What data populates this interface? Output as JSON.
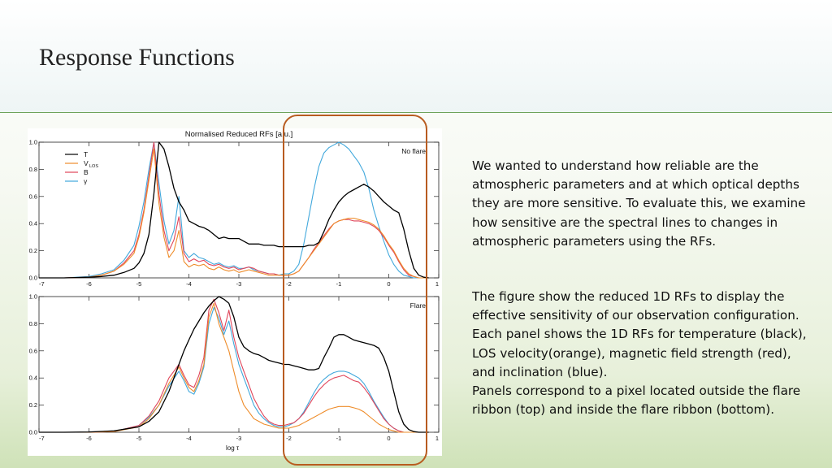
{
  "slide": {
    "title": "Response Functions",
    "paragraph1": "We wanted to understand how reliable are the atmospheric parameters and at which optical depths they are more sensitive. To evaluate this, we examine how sensitive are the spectral lines to changes in atmospheric parameters using the RFs.",
    "paragraph2_lines": [
      "The figure show the reduced 1D RFs to display the effective sensitivity of our observation configuration. Each panel shows the 1D RFs for temperature (black), LOS velocity(orange), magnetic field strength (red), and inclination (blue).",
      "Panels correspond to a pixel located outside the flare ribbon (top) and inside the flare ribbon (bottom)."
    ]
  },
  "colors": {
    "T": "#000000",
    "VLOS": "#ee8c2a",
    "B": "#e0455a",
    "gamma": "#41a8dc",
    "highlight": "#b85c20",
    "rule": "#6ea35a"
  },
  "chart_data": {
    "type": "line",
    "title": "Normalised Reduced RFs [a.u.]",
    "xlabel": "log τ",
    "xlim": [
      -7,
      1
    ],
    "ylim": [
      0,
      1
    ],
    "xticks": [
      "-7",
      "-6",
      "-5",
      "-4",
      "-3",
      "-2",
      "-1",
      "0",
      "1"
    ],
    "yticks": [
      "0.0",
      "0.2",
      "0.4",
      "0.6",
      "0.8",
      "1.0"
    ],
    "legend": {
      "placement": "top-left",
      "entries": [
        {
          "key": "T",
          "label": "T",
          "sub": ""
        },
        {
          "key": "VLOS",
          "label": "V",
          "sub": "LOS"
        },
        {
          "key": "B",
          "label": "B",
          "sub": ""
        },
        {
          "key": "gamma",
          "label": "γ",
          "sub": ""
        }
      ]
    },
    "panels": [
      {
        "label": "No flare",
        "x": [
          -7,
          -6.5,
          -6,
          -5.75,
          -5.5,
          -5.3,
          -5.1,
          -5.0,
          -4.9,
          -4.8,
          -4.7,
          -4.6,
          -4.5,
          -4.4,
          -4.3,
          -4.2,
          -4.1,
          -4.0,
          -3.9,
          -3.8,
          -3.7,
          -3.6,
          -3.5,
          -3.4,
          -3.3,
          -3.2,
          -3.1,
          -3.0,
          -2.9,
          -2.8,
          -2.7,
          -2.6,
          -2.5,
          -2.4,
          -2.3,
          -2.2,
          -2.1,
          -2.0,
          -1.9,
          -1.8,
          -1.7,
          -1.6,
          -1.5,
          -1.4,
          -1.3,
          -1.2,
          -1.1,
          -1.0,
          -0.9,
          -0.8,
          -0.7,
          -0.6,
          -0.5,
          -0.4,
          -0.3,
          -0.2,
          -0.1,
          0.0,
          0.1,
          0.2,
          0.3,
          0.4,
          0.5,
          0.6,
          0.7,
          0.8
        ],
        "series": [
          {
            "name": "T",
            "values": [
              0,
              0,
              0.005,
              0.01,
              0.02,
              0.04,
              0.07,
              0.11,
              0.18,
              0.32,
              0.62,
              1.0,
              0.95,
              0.82,
              0.66,
              0.56,
              0.5,
              0.42,
              0.4,
              0.38,
              0.37,
              0.35,
              0.32,
              0.29,
              0.3,
              0.29,
              0.29,
              0.29,
              0.27,
              0.25,
              0.25,
              0.25,
              0.24,
              0.24,
              0.24,
              0.23,
              0.23,
              0.23,
              0.23,
              0.23,
              0.23,
              0.24,
              0.24,
              0.26,
              0.34,
              0.43,
              0.5,
              0.56,
              0.6,
              0.63,
              0.65,
              0.67,
              0.69,
              0.67,
              0.64,
              0.6,
              0.56,
              0.53,
              0.5,
              0.48,
              0.36,
              0.2,
              0.07,
              0.02,
              0.005,
              0
            ]
          },
          {
            "name": "VLOS",
            "values": [
              0,
              0,
              0.005,
              0.02,
              0.05,
              0.1,
              0.18,
              0.3,
              0.48,
              0.72,
              0.95,
              0.55,
              0.3,
              0.15,
              0.2,
              0.35,
              0.12,
              0.08,
              0.1,
              0.09,
              0.1,
              0.07,
              0.06,
              0.08,
              0.06,
              0.05,
              0.06,
              0.04,
              0.05,
              0.06,
              0.05,
              0.04,
              0.03,
              0.02,
              0.02,
              0.02,
              0.02,
              0.02,
              0.03,
              0.05,
              0.1,
              0.15,
              0.2,
              0.25,
              0.3,
              0.35,
              0.4,
              0.42,
              0.43,
              0.44,
              0.44,
              0.43,
              0.42,
              0.41,
              0.39,
              0.36,
              0.31,
              0.25,
              0.2,
              0.13,
              0.07,
              0.03,
              0.01,
              0,
              0,
              0
            ]
          },
          {
            "name": "B",
            "values": [
              0,
              0,
              0.005,
              0.02,
              0.05,
              0.11,
              0.2,
              0.32,
              0.5,
              0.75,
              1.0,
              0.62,
              0.35,
              0.2,
              0.28,
              0.45,
              0.18,
              0.12,
              0.14,
              0.12,
              0.13,
              0.1,
              0.09,
              0.1,
              0.08,
              0.07,
              0.08,
              0.06,
              0.07,
              0.08,
              0.07,
              0.05,
              0.04,
              0.03,
              0.03,
              0.02,
              0.02,
              0.02,
              0.03,
              0.05,
              0.1,
              0.15,
              0.21,
              0.26,
              0.31,
              0.36,
              0.4,
              0.42,
              0.43,
              0.43,
              0.42,
              0.42,
              0.41,
              0.4,
              0.38,
              0.35,
              0.3,
              0.24,
              0.19,
              0.12,
              0.06,
              0.02,
              0.01,
              0,
              0,
              0
            ]
          },
          {
            "name": "gamma",
            "values": [
              0,
              0,
              0.01,
              0.03,
              0.06,
              0.13,
              0.24,
              0.38,
              0.56,
              0.8,
              1.0,
              0.7,
              0.42,
              0.25,
              0.35,
              0.6,
              0.2,
              0.15,
              0.18,
              0.15,
              0.14,
              0.12,
              0.1,
              0.11,
              0.09,
              0.08,
              0.09,
              0.07,
              0.07,
              0.08,
              0.06,
              0.05,
              0.04,
              0.03,
              0.03,
              0.02,
              0.03,
              0.03,
              0.05,
              0.1,
              0.25,
              0.45,
              0.65,
              0.82,
              0.92,
              0.96,
              0.98,
              1.0,
              0.98,
              0.95,
              0.9,
              0.85,
              0.78,
              0.66,
              0.5,
              0.38,
              0.27,
              0.17,
              0.1,
              0.05,
              0.02,
              0.01,
              0,
              0,
              0,
              0
            ]
          }
        ]
      },
      {
        "label": "Flare",
        "x": [
          -7,
          -6.5,
          -6,
          -5.5,
          -5.0,
          -4.8,
          -4.6,
          -4.4,
          -4.2,
          -4.1,
          -4.0,
          -3.9,
          -3.8,
          -3.7,
          -3.6,
          -3.5,
          -3.4,
          -3.3,
          -3.2,
          -3.1,
          -3.0,
          -2.9,
          -2.8,
          -2.7,
          -2.6,
          -2.5,
          -2.4,
          -2.3,
          -2.2,
          -2.1,
          -2.0,
          -1.9,
          -1.8,
          -1.7,
          -1.6,
          -1.5,
          -1.4,
          -1.3,
          -1.2,
          -1.1,
          -1.0,
          -0.9,
          -0.8,
          -0.7,
          -0.6,
          -0.5,
          -0.4,
          -0.3,
          -0.2,
          -0.1,
          0.0,
          0.1,
          0.2,
          0.3,
          0.4,
          0.5,
          0.6,
          0.7,
          0.8
        ],
        "series": [
          {
            "name": "T",
            "values": [
              0,
              0,
              0.002,
              0.01,
              0.04,
              0.08,
              0.15,
              0.3,
              0.5,
              0.6,
              0.68,
              0.76,
              0.82,
              0.88,
              0.93,
              0.97,
              1.0,
              0.98,
              0.95,
              0.85,
              0.7,
              0.63,
              0.6,
              0.58,
              0.57,
              0.55,
              0.53,
              0.52,
              0.51,
              0.5,
              0.5,
              0.49,
              0.48,
              0.47,
              0.46,
              0.46,
              0.47,
              0.55,
              0.62,
              0.7,
              0.72,
              0.72,
              0.7,
              0.68,
              0.67,
              0.66,
              0.65,
              0.64,
              0.62,
              0.55,
              0.45,
              0.3,
              0.15,
              0.06,
              0.02,
              0.005,
              0,
              0,
              0
            ]
          },
          {
            "name": "VLOS",
            "values": [
              0,
              0,
              0,
              0.005,
              0.04,
              0.1,
              0.2,
              0.36,
              0.48,
              0.4,
              0.33,
              0.3,
              0.38,
              0.5,
              0.85,
              0.95,
              0.8,
              0.7,
              0.6,
              0.45,
              0.3,
              0.2,
              0.15,
              0.1,
              0.08,
              0.06,
              0.05,
              0.04,
              0.03,
              0.03,
              0.03,
              0.04,
              0.05,
              0.07,
              0.09,
              0.11,
              0.13,
              0.15,
              0.17,
              0.18,
              0.19,
              0.19,
              0.19,
              0.18,
              0.17,
              0.15,
              0.12,
              0.09,
              0.06,
              0.04,
              0.02,
              0.01,
              0,
              0,
              0,
              0,
              0,
              0,
              0
            ]
          },
          {
            "name": "B",
            "values": [
              0,
              0,
              0,
              0.005,
              0.05,
              0.12,
              0.23,
              0.4,
              0.5,
              0.42,
              0.35,
              0.33,
              0.42,
              0.55,
              0.9,
              0.98,
              0.88,
              0.75,
              0.9,
              0.7,
              0.55,
              0.45,
              0.35,
              0.25,
              0.18,
              0.12,
              0.08,
              0.06,
              0.05,
              0.05,
              0.06,
              0.07,
              0.1,
              0.14,
              0.2,
              0.26,
              0.31,
              0.35,
              0.38,
              0.4,
              0.41,
              0.42,
              0.4,
              0.38,
              0.37,
              0.33,
              0.28,
              0.22,
              0.16,
              0.1,
              0.06,
              0.03,
              0.01,
              0,
              0,
              0,
              0,
              0,
              0
            ]
          },
          {
            "name": "gamma",
            "values": [
              0,
              0,
              0,
              0.005,
              0.05,
              0.11,
              0.2,
              0.34,
              0.45,
              0.38,
              0.3,
              0.28,
              0.36,
              0.48,
              0.8,
              0.92,
              0.84,
              0.72,
              0.82,
              0.65,
              0.5,
              0.4,
              0.3,
              0.2,
              0.14,
              0.1,
              0.07,
              0.05,
              0.04,
              0.04,
              0.05,
              0.07,
              0.1,
              0.15,
              0.22,
              0.29,
              0.35,
              0.39,
              0.42,
              0.44,
              0.45,
              0.45,
              0.44,
              0.42,
              0.4,
              0.36,
              0.3,
              0.23,
              0.17,
              0.11,
              0.06,
              0.03,
              0.01,
              0,
              0,
              0,
              0,
              0,
              0
            ]
          }
        ]
      }
    ]
  }
}
